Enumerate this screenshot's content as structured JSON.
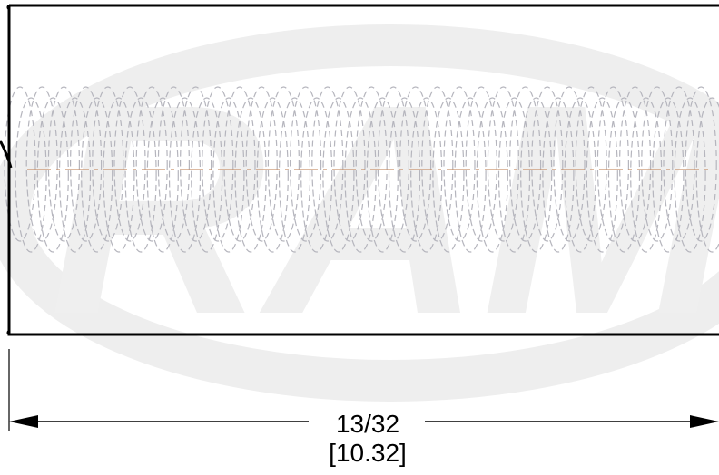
{
  "dimension": {
    "fraction_label": "13/32",
    "metric_label": "[10.32]"
  },
  "colors": {
    "outline": "#000000",
    "spring_coils": "#b5b5bd",
    "centerline": "#c8906a",
    "watermark": "#ececec"
  },
  "watermark_text": "RAM"
}
